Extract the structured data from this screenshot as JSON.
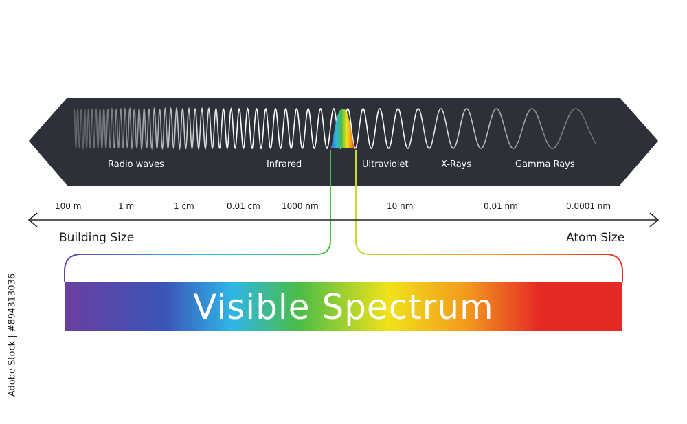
{
  "bands": {
    "radio": "Radio waves",
    "infrared": "Infrared",
    "ultraviolet": "Ultraviolet",
    "xrays": "X-Rays",
    "gamma": "Gamma Rays"
  },
  "scale": [
    "100 m",
    "1 m",
    "1 cm",
    "0.01 cm",
    "1000 nm",
    "10 nm",
    "0.01 nm",
    "0.0001 nm"
  ],
  "ends": {
    "left": "Building Size",
    "right": "Atom Size"
  },
  "visible": {
    "title": "Visible Spectrum"
  },
  "credit": "Adobe Stock | #894313036",
  "colors": {
    "band_bg": "#2d3039",
    "wave": "#ffffff",
    "spectrum": [
      "#6a3fa0",
      "#3b55b8",
      "#2fb5e6",
      "#4bbd47",
      "#f0e21a",
      "#f39a1e",
      "#e52a24"
    ]
  }
}
